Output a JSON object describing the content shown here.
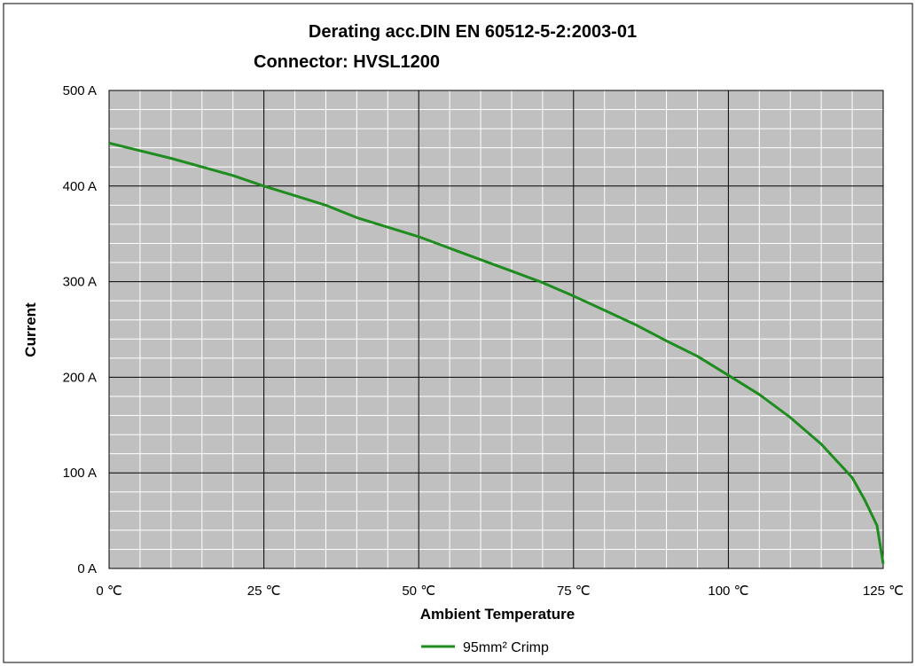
{
  "chart_data": {
    "type": "line",
    "title": "Derating acc.DIN EN 60512-5-2:2003-01",
    "subtitle": "Connector: HVSL1200",
    "xlabel": "Ambient Temperature",
    "ylabel": "Current",
    "xlim": [
      0,
      125
    ],
    "ylim": [
      0,
      500
    ],
    "x_ticks": [
      "0 ℃",
      "25 ℃",
      "50 ℃",
      "75 ℃",
      "100 ℃",
      "125 ℃"
    ],
    "y_ticks": [
      "0 A",
      "100 A",
      "200 A",
      "300 A",
      "400 A",
      "500 A"
    ],
    "grid": true,
    "legend_position": "bottom-center",
    "series": [
      {
        "name": "95mm² Crimp",
        "color": "#1e8c1e",
        "x": [
          0,
          5,
          10,
          15,
          20,
          25,
          30,
          35,
          40,
          45,
          50,
          55,
          60,
          65,
          70,
          75,
          80,
          85,
          90,
          95,
          100,
          105,
          110,
          115,
          120,
          122,
          124,
          125
        ],
        "y": [
          445,
          437,
          429,
          420,
          411,
          400,
          390,
          380,
          367,
          357,
          347,
          335,
          323,
          311,
          299,
          285,
          270,
          255,
          238,
          222,
          202,
          182,
          158,
          130,
          95,
          72,
          45,
          5
        ]
      }
    ]
  }
}
